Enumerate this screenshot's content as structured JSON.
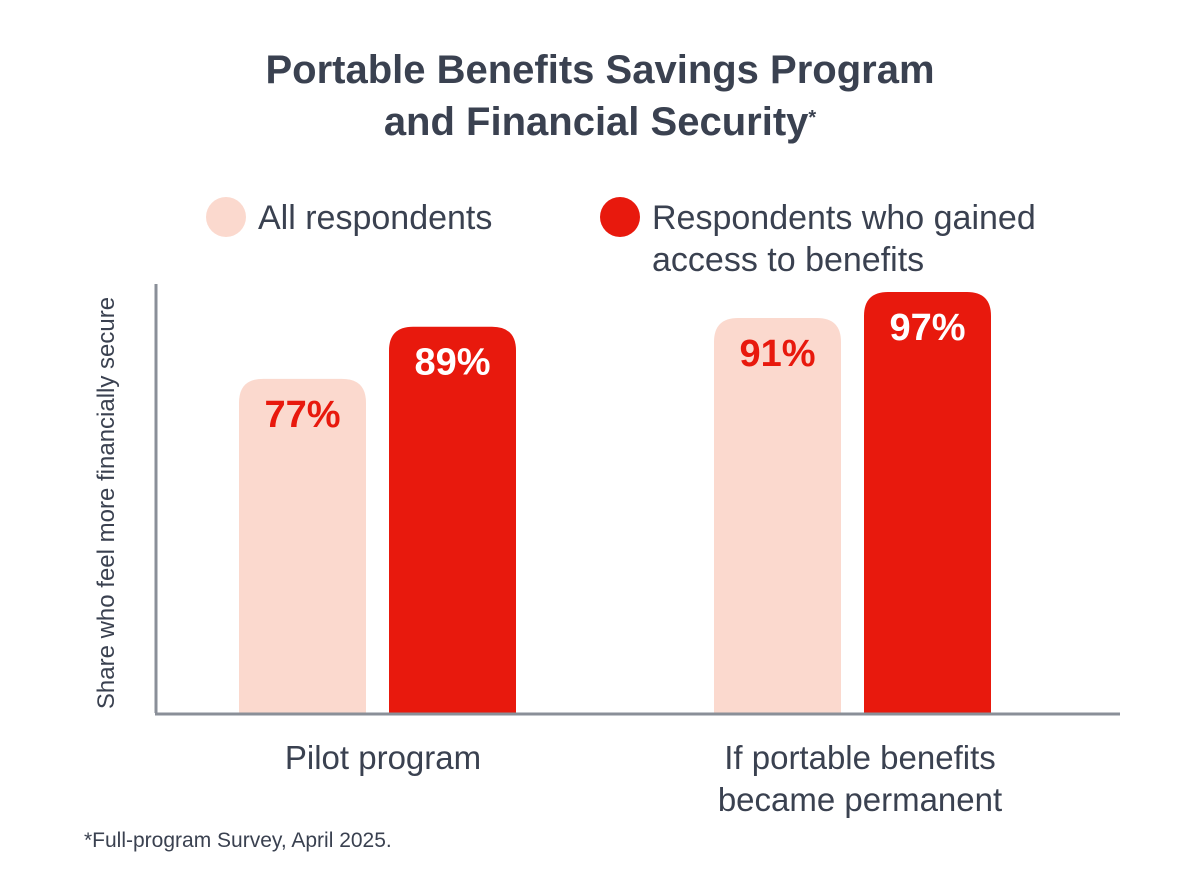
{
  "colors": {
    "all_respondents": "#fbd9ce",
    "gained_access": "#e8190d",
    "text": "#3a4150",
    "axis": "#8a8f98"
  },
  "chart_data": {
    "type": "bar",
    "title_line1": "Portable Benefits Savings Program",
    "title_line2": "and Financial Security",
    "title_marker": "*",
    "ylabel": "Share who feel more financially secure",
    "xlabel": "",
    "ylim": [
      0,
      100
    ],
    "grid": false,
    "legend_placement": "top",
    "categories": [
      "Pilot program",
      "If portable benefits became permanent"
    ],
    "category_lines": [
      [
        "Pilot program"
      ],
      [
        "If portable benefits",
        "became permanent"
      ]
    ],
    "series": [
      {
        "name": "All respondents",
        "values": [
          77,
          91
        ],
        "labels": [
          "77%",
          "91%"
        ]
      },
      {
        "name": "Respondents who gained access to benefits",
        "values": [
          89,
          97
        ],
        "labels": [
          "89%",
          "97%"
        ]
      }
    ],
    "footnote": "*Full-program Survey, April 2025."
  }
}
